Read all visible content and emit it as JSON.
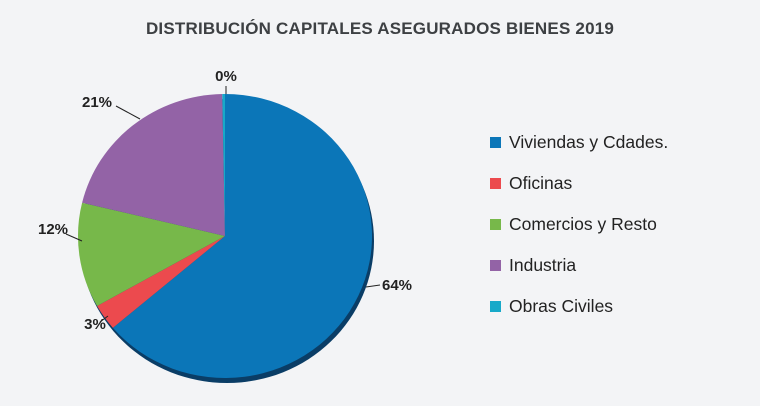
{
  "chart_data": {
    "type": "pie",
    "title": "DISTRIBUCIÓN CAPITALES ASEGURADOS BIENES 2019",
    "slices": [
      {
        "name": "Viviendas y Cdades.",
        "value": 64,
        "label": "64%",
        "color": "#0b76b8"
      },
      {
        "name": "Oficinas",
        "value": 3,
        "label": "3%",
        "color": "#ec4a4e"
      },
      {
        "name": "Comercios y Resto",
        "value": 12,
        "label": "12%",
        "color": "#77b84a"
      },
      {
        "name": "Industria",
        "value": 21,
        "label": "21%",
        "color": "#9363a6"
      },
      {
        "name": "Obras Civiles",
        "value": 0.3,
        "label": "0%",
        "color": "#17a9c9"
      }
    ],
    "legend_position": "right"
  }
}
